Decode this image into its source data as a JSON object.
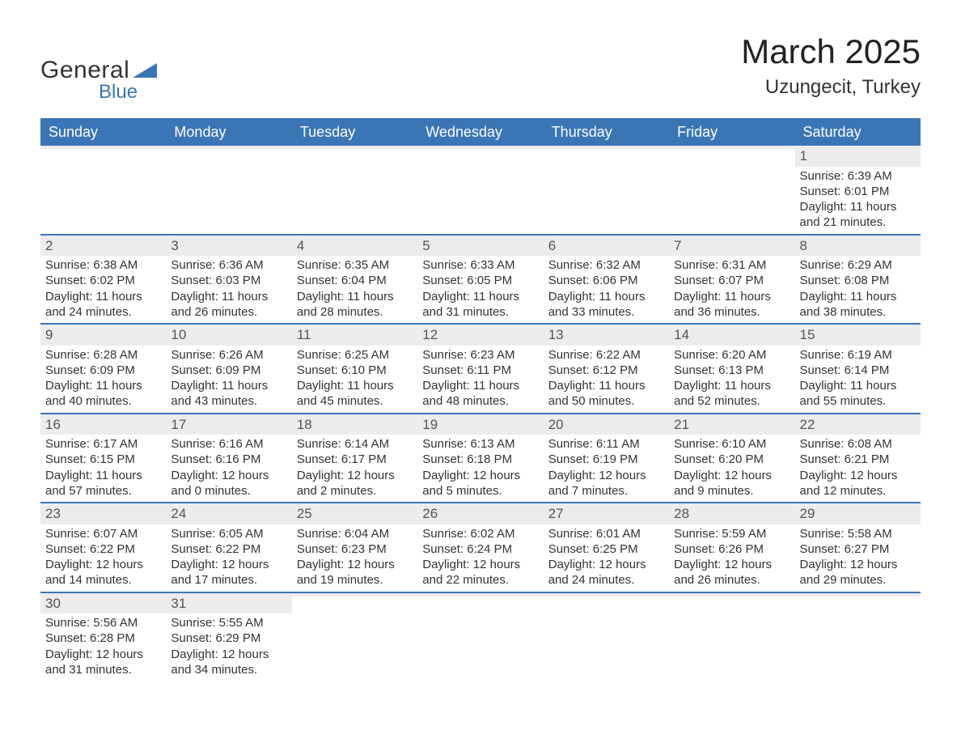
{
  "logo": {
    "text_general": "General",
    "text_blue": "Blue",
    "triangle_color": "#3a76b6"
  },
  "title": "March 2025",
  "location": "Uzungecit, Turkey",
  "colors": {
    "header_bg": "#3a76b6",
    "header_text": "#ffffff",
    "row_separator": "#3a76b6",
    "day_number_bg": "#ececec",
    "body_text": "#333333",
    "page_bg": "#ffffff"
  },
  "day_headers": [
    "Sunday",
    "Monday",
    "Tuesday",
    "Wednesday",
    "Thursday",
    "Friday",
    "Saturday"
  ],
  "weeks": [
    [
      {
        "day": "",
        "sunrise": "",
        "sunset": "",
        "daylight1": "",
        "daylight2": ""
      },
      {
        "day": "",
        "sunrise": "",
        "sunset": "",
        "daylight1": "",
        "daylight2": ""
      },
      {
        "day": "",
        "sunrise": "",
        "sunset": "",
        "daylight1": "",
        "daylight2": ""
      },
      {
        "day": "",
        "sunrise": "",
        "sunset": "",
        "daylight1": "",
        "daylight2": ""
      },
      {
        "day": "",
        "sunrise": "",
        "sunset": "",
        "daylight1": "",
        "daylight2": ""
      },
      {
        "day": "",
        "sunrise": "",
        "sunset": "",
        "daylight1": "",
        "daylight2": ""
      },
      {
        "day": "1",
        "sunrise": "Sunrise: 6:39 AM",
        "sunset": "Sunset: 6:01 PM",
        "daylight1": "Daylight: 11 hours",
        "daylight2": "and 21 minutes."
      }
    ],
    [
      {
        "day": "2",
        "sunrise": "Sunrise: 6:38 AM",
        "sunset": "Sunset: 6:02 PM",
        "daylight1": "Daylight: 11 hours",
        "daylight2": "and 24 minutes."
      },
      {
        "day": "3",
        "sunrise": "Sunrise: 6:36 AM",
        "sunset": "Sunset: 6:03 PM",
        "daylight1": "Daylight: 11 hours",
        "daylight2": "and 26 minutes."
      },
      {
        "day": "4",
        "sunrise": "Sunrise: 6:35 AM",
        "sunset": "Sunset: 6:04 PM",
        "daylight1": "Daylight: 11 hours",
        "daylight2": "and 28 minutes."
      },
      {
        "day": "5",
        "sunrise": "Sunrise: 6:33 AM",
        "sunset": "Sunset: 6:05 PM",
        "daylight1": "Daylight: 11 hours",
        "daylight2": "and 31 minutes."
      },
      {
        "day": "6",
        "sunrise": "Sunrise: 6:32 AM",
        "sunset": "Sunset: 6:06 PM",
        "daylight1": "Daylight: 11 hours",
        "daylight2": "and 33 minutes."
      },
      {
        "day": "7",
        "sunrise": "Sunrise: 6:31 AM",
        "sunset": "Sunset: 6:07 PM",
        "daylight1": "Daylight: 11 hours",
        "daylight2": "and 36 minutes."
      },
      {
        "day": "8",
        "sunrise": "Sunrise: 6:29 AM",
        "sunset": "Sunset: 6:08 PM",
        "daylight1": "Daylight: 11 hours",
        "daylight2": "and 38 minutes."
      }
    ],
    [
      {
        "day": "9",
        "sunrise": "Sunrise: 6:28 AM",
        "sunset": "Sunset: 6:09 PM",
        "daylight1": "Daylight: 11 hours",
        "daylight2": "and 40 minutes."
      },
      {
        "day": "10",
        "sunrise": "Sunrise: 6:26 AM",
        "sunset": "Sunset: 6:09 PM",
        "daylight1": "Daylight: 11 hours",
        "daylight2": "and 43 minutes."
      },
      {
        "day": "11",
        "sunrise": "Sunrise: 6:25 AM",
        "sunset": "Sunset: 6:10 PM",
        "daylight1": "Daylight: 11 hours",
        "daylight2": "and 45 minutes."
      },
      {
        "day": "12",
        "sunrise": "Sunrise: 6:23 AM",
        "sunset": "Sunset: 6:11 PM",
        "daylight1": "Daylight: 11 hours",
        "daylight2": "and 48 minutes."
      },
      {
        "day": "13",
        "sunrise": "Sunrise: 6:22 AM",
        "sunset": "Sunset: 6:12 PM",
        "daylight1": "Daylight: 11 hours",
        "daylight2": "and 50 minutes."
      },
      {
        "day": "14",
        "sunrise": "Sunrise: 6:20 AM",
        "sunset": "Sunset: 6:13 PM",
        "daylight1": "Daylight: 11 hours",
        "daylight2": "and 52 minutes."
      },
      {
        "day": "15",
        "sunrise": "Sunrise: 6:19 AM",
        "sunset": "Sunset: 6:14 PM",
        "daylight1": "Daylight: 11 hours",
        "daylight2": "and 55 minutes."
      }
    ],
    [
      {
        "day": "16",
        "sunrise": "Sunrise: 6:17 AM",
        "sunset": "Sunset: 6:15 PM",
        "daylight1": "Daylight: 11 hours",
        "daylight2": "and 57 minutes."
      },
      {
        "day": "17",
        "sunrise": "Sunrise: 6:16 AM",
        "sunset": "Sunset: 6:16 PM",
        "daylight1": "Daylight: 12 hours",
        "daylight2": "and 0 minutes."
      },
      {
        "day": "18",
        "sunrise": "Sunrise: 6:14 AM",
        "sunset": "Sunset: 6:17 PM",
        "daylight1": "Daylight: 12 hours",
        "daylight2": "and 2 minutes."
      },
      {
        "day": "19",
        "sunrise": "Sunrise: 6:13 AM",
        "sunset": "Sunset: 6:18 PM",
        "daylight1": "Daylight: 12 hours",
        "daylight2": "and 5 minutes."
      },
      {
        "day": "20",
        "sunrise": "Sunrise: 6:11 AM",
        "sunset": "Sunset: 6:19 PM",
        "daylight1": "Daylight: 12 hours",
        "daylight2": "and 7 minutes."
      },
      {
        "day": "21",
        "sunrise": "Sunrise: 6:10 AM",
        "sunset": "Sunset: 6:20 PM",
        "daylight1": "Daylight: 12 hours",
        "daylight2": "and 9 minutes."
      },
      {
        "day": "22",
        "sunrise": "Sunrise: 6:08 AM",
        "sunset": "Sunset: 6:21 PM",
        "daylight1": "Daylight: 12 hours",
        "daylight2": "and 12 minutes."
      }
    ],
    [
      {
        "day": "23",
        "sunrise": "Sunrise: 6:07 AM",
        "sunset": "Sunset: 6:22 PM",
        "daylight1": "Daylight: 12 hours",
        "daylight2": "and 14 minutes."
      },
      {
        "day": "24",
        "sunrise": "Sunrise: 6:05 AM",
        "sunset": "Sunset: 6:22 PM",
        "daylight1": "Daylight: 12 hours",
        "daylight2": "and 17 minutes."
      },
      {
        "day": "25",
        "sunrise": "Sunrise: 6:04 AM",
        "sunset": "Sunset: 6:23 PM",
        "daylight1": "Daylight: 12 hours",
        "daylight2": "and 19 minutes."
      },
      {
        "day": "26",
        "sunrise": "Sunrise: 6:02 AM",
        "sunset": "Sunset: 6:24 PM",
        "daylight1": "Daylight: 12 hours",
        "daylight2": "and 22 minutes."
      },
      {
        "day": "27",
        "sunrise": "Sunrise: 6:01 AM",
        "sunset": "Sunset: 6:25 PM",
        "daylight1": "Daylight: 12 hours",
        "daylight2": "and 24 minutes."
      },
      {
        "day": "28",
        "sunrise": "Sunrise: 5:59 AM",
        "sunset": "Sunset: 6:26 PM",
        "daylight1": "Daylight: 12 hours",
        "daylight2": "and 26 minutes."
      },
      {
        "day": "29",
        "sunrise": "Sunrise: 5:58 AM",
        "sunset": "Sunset: 6:27 PM",
        "daylight1": "Daylight: 12 hours",
        "daylight2": "and 29 minutes."
      }
    ],
    [
      {
        "day": "30",
        "sunrise": "Sunrise: 5:56 AM",
        "sunset": "Sunset: 6:28 PM",
        "daylight1": "Daylight: 12 hours",
        "daylight2": "and 31 minutes."
      },
      {
        "day": "31",
        "sunrise": "Sunrise: 5:55 AM",
        "sunset": "Sunset: 6:29 PM",
        "daylight1": "Daylight: 12 hours",
        "daylight2": "and 34 minutes."
      },
      {
        "day": "",
        "sunrise": "",
        "sunset": "",
        "daylight1": "",
        "daylight2": ""
      },
      {
        "day": "",
        "sunrise": "",
        "sunset": "",
        "daylight1": "",
        "daylight2": ""
      },
      {
        "day": "",
        "sunrise": "",
        "sunset": "",
        "daylight1": "",
        "daylight2": ""
      },
      {
        "day": "",
        "sunrise": "",
        "sunset": "",
        "daylight1": "",
        "daylight2": ""
      },
      {
        "day": "",
        "sunrise": "",
        "sunset": "",
        "daylight1": "",
        "daylight2": ""
      }
    ]
  ]
}
